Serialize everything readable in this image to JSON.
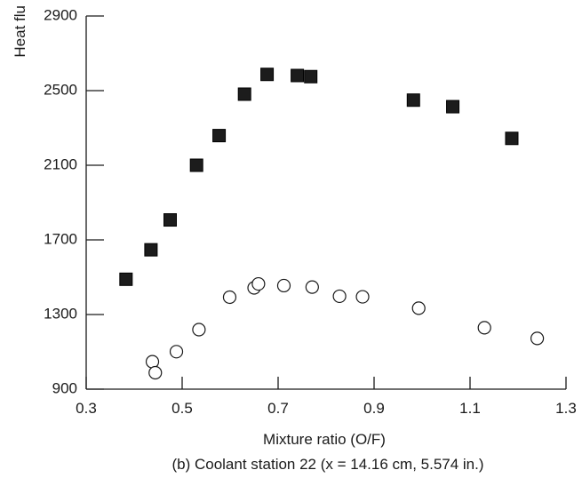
{
  "chart_data": {
    "type": "scatter",
    "ylabel": "Heat flu",
    "xlabel": "Mixture ratio (O/F)",
    "caption": "(b) Coolant station 22 (x = 14.16 cm, 5.574 in.)",
    "xlim": [
      0.3,
      1.3
    ],
    "ylim": [
      900,
      2900
    ],
    "xticks": [
      0.3,
      0.5,
      0.7,
      0.9,
      1.1,
      1.3
    ],
    "xtick_labels": [
      "0.3",
      "0.5",
      "0.7",
      "0.9",
      "1.1",
      "1.3"
    ],
    "yticks": [
      900,
      1300,
      1700,
      2100,
      2500,
      2900
    ],
    "ytick_labels": [
      "900",
      "1300",
      "1700",
      "2100",
      "2500",
      "2900"
    ],
    "grid": false,
    "series": [
      {
        "marker": "filled-square",
        "color": "#1c1c1c",
        "points": [
          [
            0.383,
            1489
          ],
          [
            0.435,
            1647
          ],
          [
            0.475,
            1807
          ],
          [
            0.53,
            2100
          ],
          [
            0.577,
            2259
          ],
          [
            0.63,
            2481
          ],
          [
            0.677,
            2587
          ],
          [
            0.74,
            2581
          ],
          [
            0.768,
            2575
          ],
          [
            0.982,
            2449
          ],
          [
            1.064,
            2414
          ],
          [
            1.187,
            2244
          ]
        ]
      },
      {
        "marker": "open-circle",
        "color": "#1a1a1a",
        "points": [
          [
            0.438,
            1047
          ],
          [
            0.444,
            988
          ],
          [
            0.488,
            1101
          ],
          [
            0.535,
            1219
          ],
          [
            0.599,
            1393
          ],
          [
            0.65,
            1443
          ],
          [
            0.659,
            1464
          ],
          [
            0.712,
            1455
          ],
          [
            0.771,
            1447
          ],
          [
            0.828,
            1398
          ],
          [
            0.876,
            1395
          ],
          [
            0.993,
            1334
          ],
          [
            1.13,
            1229
          ],
          [
            1.24,
            1172
          ]
        ]
      }
    ]
  }
}
